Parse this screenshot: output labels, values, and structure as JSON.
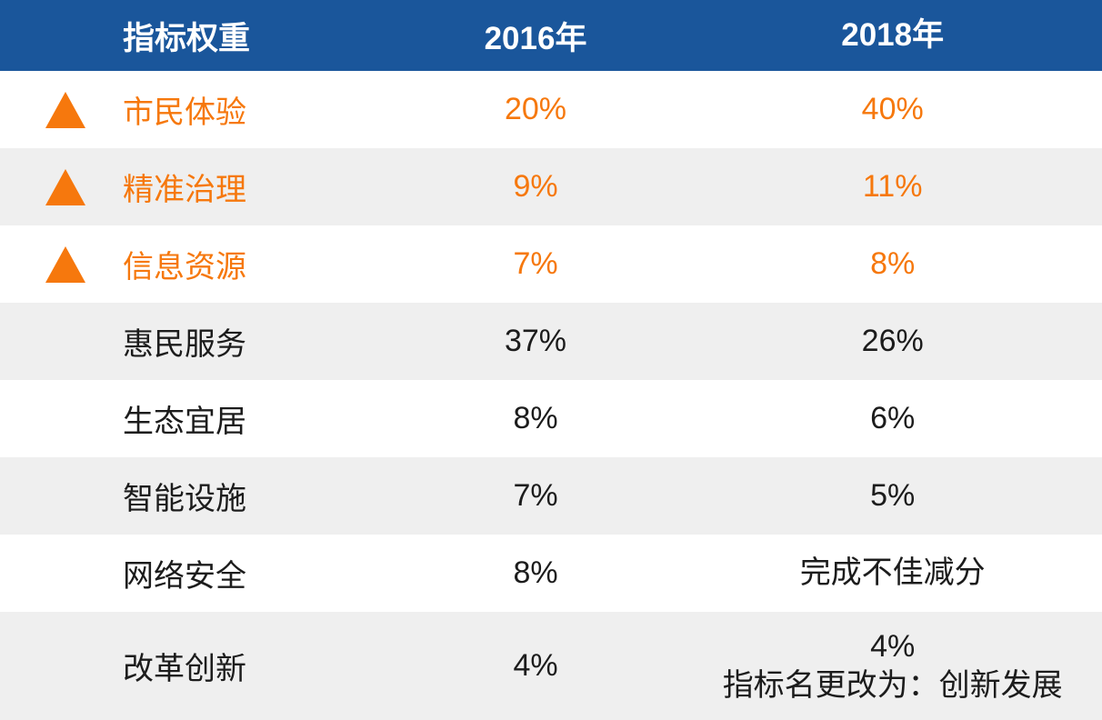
{
  "colors": {
    "header_bg": "#1A569B",
    "header_text": "#FFFFFF",
    "accent_orange": "#F6780D",
    "alt_row_bg": "#EFEFEF",
    "text": "#1C1C1C"
  },
  "table": {
    "header": {
      "indicator": "指标权重",
      "y2016": "2016年",
      "y2018": "2018年"
    },
    "rows": [
      {
        "indicator": "市民体验",
        "y2016": "20%",
        "y2018": "40%",
        "trend_icon": "up-triangle",
        "highlighted": true
      },
      {
        "indicator": "精准治理",
        "y2016": "9%",
        "y2018": "11%",
        "trend_icon": "up-triangle",
        "highlighted": true
      },
      {
        "indicator": "信息资源",
        "y2016": "7%",
        "y2018": "8%",
        "trend_icon": "up-triangle",
        "highlighted": true
      },
      {
        "indicator": "惠民服务",
        "y2016": "37%",
        "y2018": "26%",
        "highlighted": false
      },
      {
        "indicator": "生态宜居",
        "y2016": "8%",
        "y2018": "6%",
        "highlighted": false
      },
      {
        "indicator": "智能设施",
        "y2016": "7%",
        "y2018": "5%",
        "highlighted": false
      },
      {
        "indicator": "网络安全",
        "y2016": "8%",
        "y2018": "完成不佳减分",
        "highlighted": false
      },
      {
        "indicator": "改革创新",
        "y2016": "4%",
        "y2018": "4%\n指标名更改为：创新发展",
        "highlighted": false
      }
    ]
  },
  "chart_data": {
    "type": "table",
    "title": "指标权重",
    "columns": [
      "指标权重",
      "2016年",
      "2018年"
    ],
    "rows": [
      [
        "市民体验",
        "20%",
        "40%"
      ],
      [
        "精准治理",
        "9%",
        "11%"
      ],
      [
        "信息资源",
        "7%",
        "8%"
      ],
      [
        "惠民服务",
        "37%",
        "26%"
      ],
      [
        "生态宜居",
        "8%",
        "6%"
      ],
      [
        "智能设施",
        "7%",
        "5%"
      ],
      [
        "网络安全",
        "8%",
        "完成不佳减分"
      ],
      [
        "改革创新",
        "4%",
        "4% 指标名更改为：创新发展"
      ]
    ],
    "highlighted_rows": [
      "市民体验",
      "精准治理",
      "信息资源"
    ],
    "layout_hints": {
      "header_style": "blue background, white bold text",
      "alternating_rows": true,
      "highlight_style": "orange text with orange up-triangle icon"
    }
  }
}
